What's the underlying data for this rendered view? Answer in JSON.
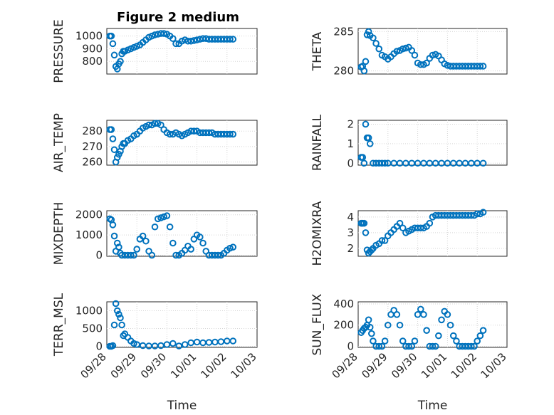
{
  "window": {
    "title": "Figure 2 medium"
  },
  "colors": {
    "marker": "#0072BD",
    "axis": "#262626",
    "grid": "#d5d5d5"
  },
  "time_ticks": [
    "09/28",
    "09/29",
    "09/30",
    "10/01",
    "10/02",
    "10/03"
  ],
  "chart_data": [
    {
      "type": "scatter",
      "title": "Figure 2 medium",
      "ylabel": "PRESSURE",
      "xlabel": "",
      "xlim": [
        0,
        5
      ],
      "ylim": [
        700,
        1060
      ],
      "yticks": [
        800,
        900,
        1000
      ],
      "grid": true,
      "series": [
        {
          "x": [
            0.1,
            0.15,
            0.2,
            0.25,
            0.3,
            0.35,
            0.4,
            0.45,
            0.5,
            0.55,
            0.6,
            0.7,
            0.8,
            0.9,
            1.0,
            1.1,
            1.2,
            1.3,
            1.4,
            1.5,
            1.6,
            1.7,
            1.8,
            1.9,
            2.0,
            2.1,
            2.2,
            2.3,
            2.4,
            2.5,
            2.6,
            2.7,
            2.8,
            2.9,
            3.0,
            3.1,
            3.2,
            3.3,
            3.4,
            3.5,
            3.6,
            3.7,
            3.8,
            3.9,
            4.0,
            4.1,
            4.2
          ],
          "y": [
            1000,
            1000,
            940,
            850,
            760,
            740,
            780,
            800,
            860,
            880,
            880,
            890,
            900,
            910,
            920,
            930,
            950,
            970,
            990,
            1000,
            1010,
            1015,
            1020,
            1020,
            1015,
            1000,
            980,
            940,
            940,
            960,
            970,
            960,
            960,
            965,
            970,
            975,
            980,
            980,
            975,
            975,
            975,
            975,
            975,
            975,
            975,
            975,
            975
          ]
        }
      ]
    },
    {
      "type": "scatter",
      "ylabel": "THETA",
      "xlabel": "",
      "xlim": [
        0,
        5
      ],
      "ylim": [
        279.6,
        285.4
      ],
      "yticks": [
        280,
        285
      ],
      "grid": true,
      "series": [
        {
          "x": [
            0.1,
            0.15,
            0.2,
            0.25,
            0.3,
            0.35,
            0.4,
            0.5,
            0.6,
            0.7,
            0.8,
            0.9,
            1.0,
            1.1,
            1.2,
            1.3,
            1.4,
            1.5,
            1.6,
            1.7,
            1.8,
            1.9,
            2.0,
            2.1,
            2.2,
            2.3,
            2.4,
            2.5,
            2.6,
            2.7,
            2.8,
            2.9,
            3.0,
            3.1,
            3.2,
            3.3,
            3.4,
            3.5,
            3.6,
            3.7,
            3.8,
            3.9,
            4.0,
            4.1,
            4.2
          ],
          "y": [
            280.5,
            280.6,
            280.0,
            281.2,
            284.6,
            285.0,
            284.5,
            284.2,
            283.5,
            282.8,
            282.0,
            281.8,
            281.5,
            281.8,
            282.2,
            282.5,
            282.6,
            282.8,
            282.9,
            283.0,
            282.6,
            282.0,
            281.0,
            280.8,
            280.8,
            281.0,
            281.6,
            282.0,
            282.1,
            281.9,
            281.4,
            280.9,
            280.7,
            280.6,
            280.6,
            280.6,
            280.6,
            280.6,
            280.6,
            280.6,
            280.6,
            280.6,
            280.6,
            280.6,
            280.6
          ]
        }
      ]
    },
    {
      "type": "scatter",
      "ylabel": "AIR_TEMP",
      "xlabel": "",
      "xlim": [
        0,
        5
      ],
      "ylim": [
        258,
        287
      ],
      "yticks": [
        260,
        270,
        280
      ],
      "grid": true,
      "series": [
        {
          "x": [
            0.1,
            0.15,
            0.2,
            0.25,
            0.3,
            0.35,
            0.4,
            0.45,
            0.5,
            0.55,
            0.6,
            0.7,
            0.8,
            0.9,
            1.0,
            1.1,
            1.2,
            1.3,
            1.4,
            1.5,
            1.6,
            1.7,
            1.8,
            1.9,
            2.0,
            2.1,
            2.2,
            2.3,
            2.4,
            2.5,
            2.6,
            2.7,
            2.8,
            2.9,
            3.0,
            3.1,
            3.2,
            3.3,
            3.4,
            3.5,
            3.6,
            3.7,
            3.8,
            3.9,
            4.0,
            4.1,
            4.2
          ],
          "y": [
            281,
            281,
            275,
            268,
            260,
            263,
            265,
            267,
            270,
            272,
            272,
            274,
            275,
            277,
            278,
            280,
            282,
            283,
            284,
            284,
            285,
            285,
            284,
            281,
            279,
            278,
            278,
            279,
            278,
            277,
            278,
            279,
            280,
            280,
            280,
            279,
            279,
            279,
            279,
            279,
            278,
            278,
            278,
            278,
            278,
            278,
            278
          ]
        }
      ]
    },
    {
      "type": "scatter",
      "ylabel": "RAINFALL",
      "xlabel": "",
      "xlim": [
        0,
        5
      ],
      "ylim": [
        -0.1,
        2.2
      ],
      "yticks": [
        0,
        1,
        2
      ],
      "grid": true,
      "series": [
        {
          "x": [
            0.1,
            0.15,
            0.2,
            0.25,
            0.3,
            0.35,
            0.4,
            0.5,
            0.6,
            0.7,
            0.8,
            0.9,
            1.0,
            1.2,
            1.4,
            1.6,
            1.8,
            2.0,
            2.2,
            2.4,
            2.6,
            2.8,
            3.0,
            3.2,
            3.4,
            3.6,
            3.8,
            4.0,
            4.2
          ],
          "y": [
            0.3,
            0.3,
            0,
            2.0,
            1.3,
            1.3,
            1.0,
            0,
            0,
            0,
            0,
            0,
            0,
            0,
            0,
            0,
            0,
            0,
            0,
            0,
            0,
            0,
            0,
            0,
            0,
            0,
            0,
            0,
            0
          ]
        }
      ]
    },
    {
      "type": "scatter",
      "ylabel": "MIXDEPTH",
      "xlabel": "",
      "xlim": [
        0,
        5
      ],
      "ylim": [
        -50,
        2200
      ],
      "yticks": [
        0,
        1000,
        2000
      ],
      "grid": true,
      "series": [
        {
          "x": [
            0.1,
            0.15,
            0.2,
            0.25,
            0.3,
            0.35,
            0.4,
            0.45,
            0.5,
            0.6,
            0.7,
            0.8,
            0.9,
            1.0,
            1.1,
            1.2,
            1.3,
            1.4,
            1.5,
            1.6,
            1.7,
            1.8,
            1.9,
            2.0,
            2.1,
            2.2,
            2.3,
            2.4,
            2.5,
            2.6,
            2.7,
            2.8,
            2.9,
            3.0,
            3.1,
            3.2,
            3.3,
            3.4,
            3.5,
            3.6,
            3.7,
            3.8,
            3.9,
            4.0,
            4.1,
            4.2
          ],
          "y": [
            1800,
            1750,
            1500,
            950,
            200,
            600,
            400,
            100,
            0,
            0,
            0,
            0,
            0,
            300,
            800,
            950,
            700,
            200,
            0,
            1400,
            1800,
            1850,
            1900,
            1950,
            1400,
            600,
            0,
            0,
            100,
            250,
            450,
            300,
            800,
            1000,
            900,
            600,
            200,
            0,
            0,
            0,
            0,
            0,
            100,
            250,
            350,
            400
          ]
        }
      ]
    },
    {
      "type": "scatter",
      "ylabel": "H2OMIXRA",
      "xlabel": "",
      "xlim": [
        0,
        5
      ],
      "ylim": [
        1.5,
        4.4
      ],
      "yticks": [
        2,
        3,
        4
      ],
      "grid": true,
      "series": [
        {
          "x": [
            0.1,
            0.15,
            0.2,
            0.25,
            0.3,
            0.35,
            0.4,
            0.45,
            0.5,
            0.6,
            0.7,
            0.8,
            0.9,
            1.0,
            1.1,
            1.2,
            1.3,
            1.4,
            1.5,
            1.6,
            1.7,
            1.8,
            1.9,
            2.0,
            2.1,
            2.2,
            2.3,
            2.4,
            2.5,
            2.6,
            2.7,
            2.8,
            2.9,
            3.0,
            3.1,
            3.2,
            3.3,
            3.4,
            3.5,
            3.6,
            3.7,
            3.8,
            3.9,
            4.0,
            4.1,
            4.2
          ],
          "y": [
            3.6,
            3.6,
            3.6,
            3.0,
            1.9,
            1.7,
            1.8,
            1.9,
            2.0,
            2.2,
            2.3,
            2.5,
            2.5,
            2.8,
            3.0,
            3.2,
            3.4,
            3.6,
            3.3,
            3.0,
            3.1,
            3.2,
            3.3,
            3.3,
            3.3,
            3.3,
            3.4,
            3.6,
            4.0,
            4.1,
            4.1,
            4.1,
            4.1,
            4.1,
            4.1,
            4.1,
            4.1,
            4.1,
            4.1,
            4.1,
            4.1,
            4.1,
            4.1,
            4.2,
            4.2,
            4.3
          ]
        }
      ]
    },
    {
      "type": "scatter",
      "ylabel": "TERR_MSL",
      "xlabel": "Time",
      "xlim": [
        0,
        5
      ],
      "ylim": [
        -30,
        1250
      ],
      "yticks": [
        0,
        500,
        1000
      ],
      "grid": true,
      "series": [
        {
          "x": [
            0.1,
            0.15,
            0.2,
            0.25,
            0.3,
            0.35,
            0.4,
            0.45,
            0.5,
            0.55,
            0.6,
            0.7,
            0.8,
            0.9,
            1.0,
            1.2,
            1.4,
            1.6,
            1.8,
            2.0,
            2.2,
            2.4,
            2.6,
            2.8,
            3.0,
            3.2,
            3.4,
            3.6,
            3.8,
            4.0,
            4.2
          ],
          "y": [
            0,
            0,
            20,
            600,
            1200,
            1000,
            900,
            800,
            600,
            300,
            350,
            250,
            150,
            80,
            50,
            20,
            10,
            10,
            20,
            50,
            80,
            10,
            50,
            100,
            120,
            100,
            110,
            120,
            130,
            150,
            150
          ]
        }
      ]
    },
    {
      "type": "scatter",
      "ylabel": "SUN_FLUX",
      "xlabel": "Time",
      "xlim": [
        0,
        5
      ],
      "ylim": [
        -10,
        420
      ],
      "yticks": [
        0,
        200,
        400
      ],
      "grid": true,
      "series": [
        {
          "x": [
            0.1,
            0.15,
            0.2,
            0.25,
            0.3,
            0.35,
            0.4,
            0.45,
            0.5,
            0.6,
            0.7,
            0.8,
            0.9,
            1.0,
            1.1,
            1.2,
            1.3,
            1.4,
            1.5,
            1.6,
            1.7,
            1.8,
            1.9,
            2.0,
            2.1,
            2.2,
            2.3,
            2.4,
            2.5,
            2.6,
            2.7,
            2.8,
            2.9,
            3.0,
            3.1,
            3.2,
            3.3,
            3.4,
            3.5,
            3.6,
            3.7,
            3.8,
            3.9,
            4.0,
            4.1,
            4.2
          ],
          "y": [
            130,
            150,
            170,
            180,
            200,
            250,
            180,
            120,
            50,
            0,
            0,
            0,
            50,
            200,
            300,
            340,
            300,
            200,
            50,
            0,
            0,
            0,
            50,
            300,
            350,
            300,
            150,
            0,
            0,
            0,
            100,
            250,
            330,
            300,
            200,
            100,
            50,
            0,
            0,
            0,
            0,
            0,
            0,
            50,
            100,
            150
          ]
        }
      ]
    }
  ]
}
